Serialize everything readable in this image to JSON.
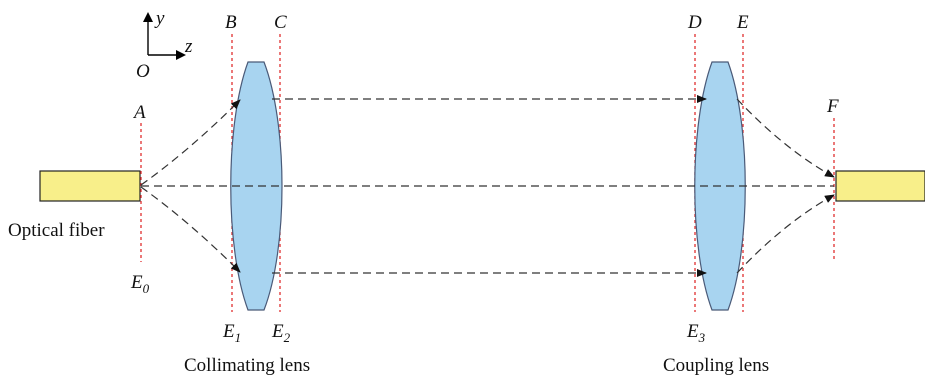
{
  "axes": {
    "y": "y",
    "z": "z",
    "origin": "O"
  },
  "planes": {
    "a": "A",
    "b": "B",
    "c": "C",
    "d": "D",
    "e": "E",
    "f": "F"
  },
  "field_labels": [
    {
      "base": "E",
      "sub": "0"
    },
    {
      "base": "E",
      "sub": "1"
    },
    {
      "base": "E",
      "sub": "2"
    },
    {
      "base": "E",
      "sub": "3"
    }
  ],
  "captions": {
    "fiber": "Optical fiber",
    "collimating": "Collimating lens",
    "coupling": "Coupling lens"
  },
  "colors": {
    "lens_fill": "#a8d4f0",
    "fiber_fill": "#f8ef8a",
    "plane_line": "#e03030"
  }
}
